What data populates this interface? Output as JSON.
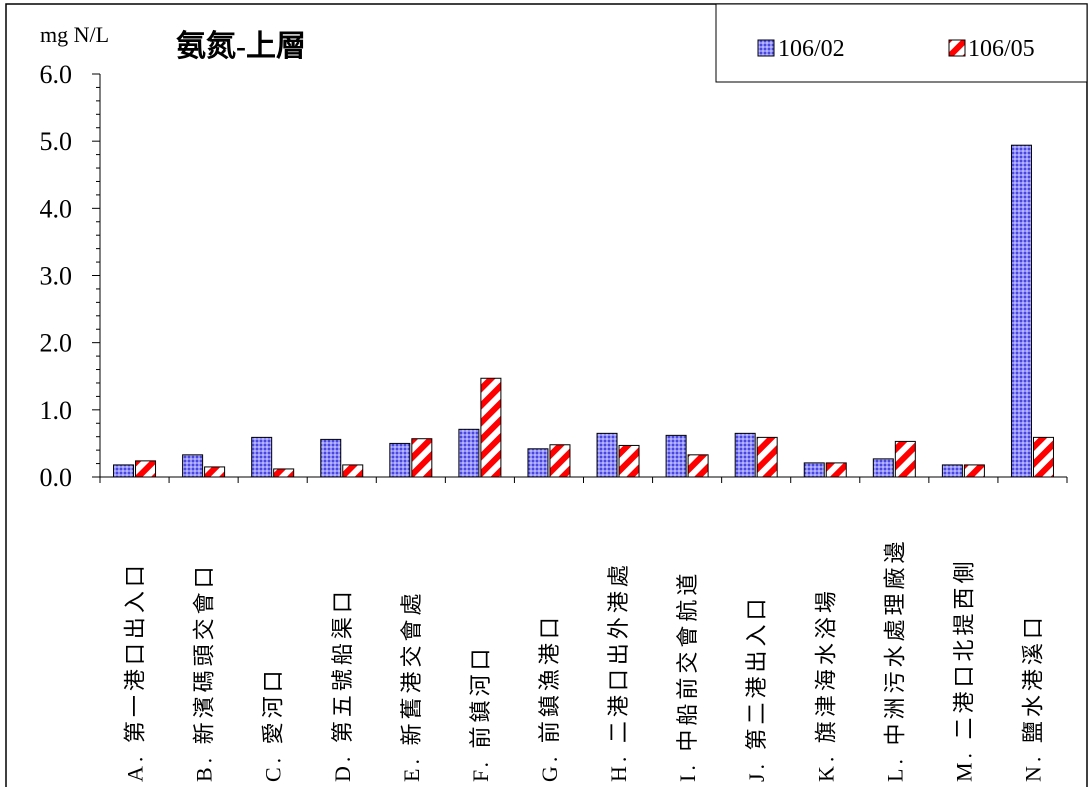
{
  "chart_data": {
    "type": "bar",
    "title": "氨氮-上層",
    "ylabel": "mg N/L",
    "xlabel": "",
    "ylim": [
      0,
      6
    ],
    "yticks": [
      "0.0",
      "1.0",
      "2.0",
      "3.0",
      "4.0",
      "5.0",
      "6.0"
    ],
    "grid": false,
    "legend_position": "top-right",
    "categories": [
      "A. 第一港口出入口",
      "B. 新濱碼頭交會口",
      "C. 愛河口",
      "D. 第五號船渠口",
      "E. 新舊港交會處",
      "F. 前鎮河口",
      "G. 前鎮漁港口",
      "H. 二港口出外港處",
      "I. 中船前交會航道",
      "J. 第二港出入口",
      "K. 旗津海水浴場",
      "L. 中洲污水處理廠邊",
      "M. 二港口北提西側",
      "N. 鹽水港溪口"
    ],
    "series": [
      {
        "name": "106/02",
        "color": "#7f7fff",
        "pattern": "blue-dots",
        "values": [
          0.18,
          0.33,
          0.59,
          0.56,
          0.5,
          0.71,
          0.42,
          0.65,
          0.62,
          0.65,
          0.21,
          0.27,
          0.18,
          4.94
        ]
      },
      {
        "name": "106/05",
        "color": "#ff0000",
        "pattern": "red-diagonal-stripes",
        "values": [
          0.24,
          0.15,
          0.12,
          0.18,
          0.57,
          1.47,
          0.48,
          0.47,
          0.33,
          0.59,
          0.21,
          0.53,
          0.18,
          0.59
        ]
      }
    ]
  }
}
